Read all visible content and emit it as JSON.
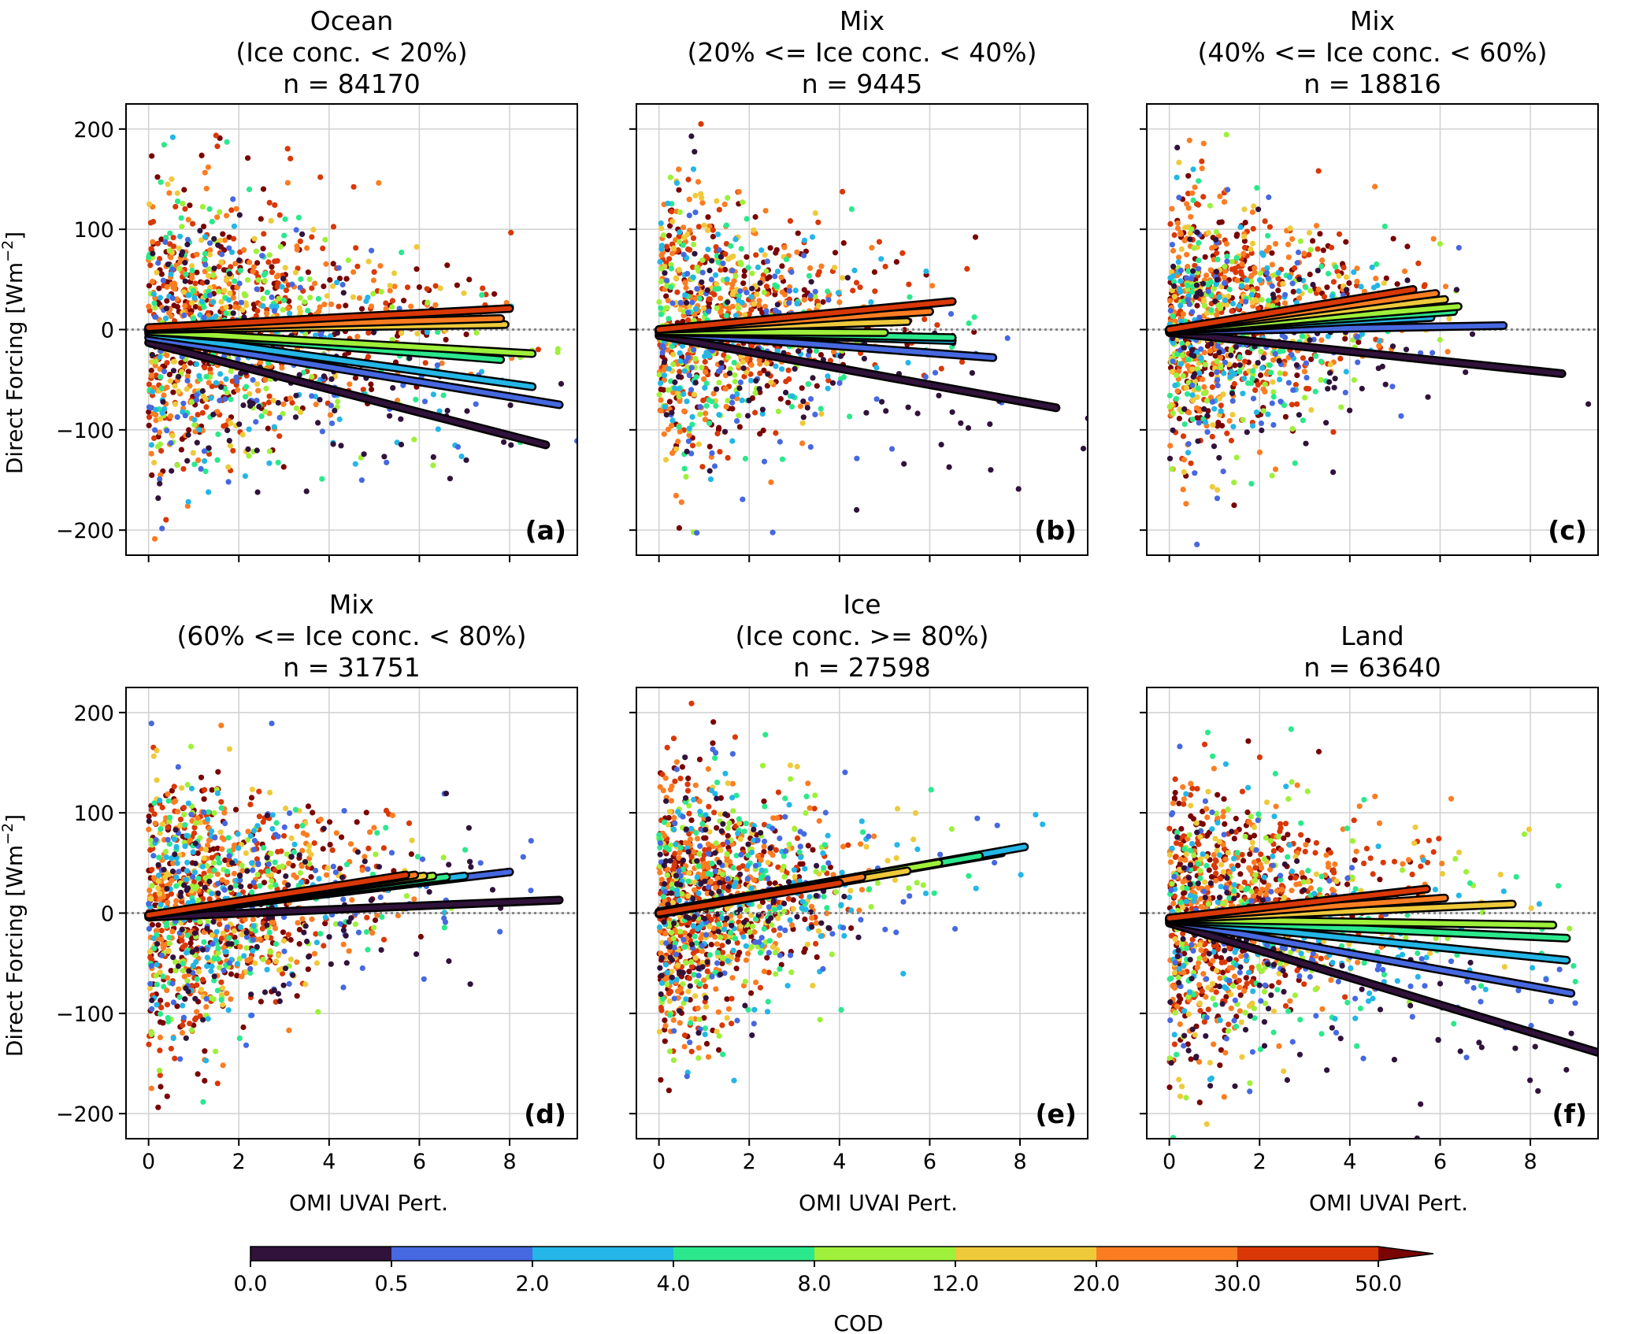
{
  "figure": {
    "xlabel": "OMI UVAI Pert.",
    "ylabel": "Direct Forcing [Wm",
    "ylabel_sup": "−2",
    "ylabel_end": "]"
  },
  "colorbar": {
    "label": "COD",
    "bounds": [
      0.0,
      0.5,
      2.0,
      4.0,
      8.0,
      12.0,
      20.0,
      30.0,
      50.0
    ],
    "tick_labels": [
      "0.0",
      "0.5",
      "2.0",
      "4.0",
      "8.0",
      "12.0",
      "20.0",
      "30.0",
      "50.0"
    ],
    "colors": [
      "#30123b",
      "#4668e0",
      "#23b6e6",
      "#2be88c",
      "#9ef03a",
      "#eeca3b",
      "#fb7d22",
      "#d93806",
      "#7a0403"
    ],
    "extend": "max"
  },
  "chart_data": [
    {
      "type": "scatter",
      "title_lines": [
        "Ocean",
        "(Ice conc. < 20%)",
        "n = 84170"
      ],
      "panel_label": "(a)",
      "n": 84170,
      "xlim": [
        -0.5,
        9.5
      ],
      "ylim": [
        -225,
        225
      ],
      "xticks": [
        0,
        2,
        4,
        6,
        8
      ],
      "yticks": [
        -200,
        -100,
        0,
        100,
        200
      ],
      "yticklabels": [
        "−200",
        "−100",
        "0",
        "100",
        "200"
      ],
      "zero_line": true,
      "fit_lines": [
        {
          "cod_bin": "30.0-50.0",
          "color": "#d93806",
          "x": [
            0,
            8.0
          ],
          "y": [
            2,
            21
          ]
        },
        {
          "cod_bin": "20.0-30.0",
          "color": "#fb7d22",
          "x": [
            0,
            7.8
          ],
          "y": [
            1,
            11
          ]
        },
        {
          "cod_bin": "12.0-20.0",
          "color": "#eeca3b",
          "x": [
            0,
            7.9
          ],
          "y": [
            0,
            5
          ]
        },
        {
          "cod_bin": "8.0-12.0",
          "color": "#9ef03a",
          "x": [
            0,
            8.5
          ],
          "y": [
            -2,
            -24
          ]
        },
        {
          "cod_bin": "4.0-8.0",
          "color": "#2be88c",
          "x": [
            0,
            7.8
          ],
          "y": [
            -2,
            -30
          ]
        },
        {
          "cod_bin": "2.0-4.0",
          "color": "#23b6e6",
          "x": [
            0,
            8.5
          ],
          "y": [
            -4,
            -57
          ]
        },
        {
          "cod_bin": "0.5-2.0",
          "color": "#4668e0",
          "x": [
            0,
            9.1
          ],
          "y": [
            -8,
            -75
          ]
        },
        {
          "cod_bin": "0.0-0.5",
          "color": "#30123b",
          "x": [
            0,
            8.8
          ],
          "y": [
            -13,
            -115
          ]
        }
      ]
    },
    {
      "type": "scatter",
      "title_lines": [
        "Mix",
        "(20% <= Ice conc. < 40%)",
        "n = 9445"
      ],
      "panel_label": "(b)",
      "n": 9445,
      "xlim": [
        -0.5,
        9.5
      ],
      "ylim": [
        -225,
        225
      ],
      "xticks": [
        0,
        2,
        4,
        6,
        8
      ],
      "yticks": [
        -200,
        -100,
        0,
        100,
        200
      ],
      "yticklabels": [
        "−200",
        "−100",
        "0",
        "100",
        "200"
      ],
      "zero_line": true,
      "fit_lines": [
        {
          "cod_bin": "30.0-50.0",
          "color": "#d93806",
          "x": [
            0,
            6.5
          ],
          "y": [
            0,
            28
          ]
        },
        {
          "cod_bin": "20.0-30.0",
          "color": "#fb7d22",
          "x": [
            0,
            6.0
          ],
          "y": [
            0,
            18
          ]
        },
        {
          "cod_bin": "12.0-20.0",
          "color": "#eeca3b",
          "x": [
            0,
            5.5
          ],
          "y": [
            0,
            8
          ]
        },
        {
          "cod_bin": "8.0-12.0",
          "color": "#9ef03a",
          "x": [
            0,
            5.0
          ],
          "y": [
            -2,
            -3
          ]
        },
        {
          "cod_bin": "4.0-8.0",
          "color": "#2be88c",
          "x": [
            0,
            6.5
          ],
          "y": [
            -2,
            -8
          ]
        },
        {
          "cod_bin": "2.0-4.0",
          "color": "#23b6e6",
          "x": [
            0,
            6.5
          ],
          "y": [
            -2,
            -11
          ]
        },
        {
          "cod_bin": "0.5-2.0",
          "color": "#4668e0",
          "x": [
            0,
            7.4
          ],
          "y": [
            -3,
            -28
          ]
        },
        {
          "cod_bin": "0.0-0.5",
          "color": "#30123b",
          "x": [
            0,
            8.8
          ],
          "y": [
            -6,
            -78
          ]
        }
      ]
    },
    {
      "type": "scatter",
      "title_lines": [
        "Mix",
        "(40% <= Ice conc. < 60%)",
        "n = 18816"
      ],
      "panel_label": "(c)",
      "n": 18816,
      "xlim": [
        -0.5,
        9.5
      ],
      "ylim": [
        -225,
        225
      ],
      "xticks": [
        0,
        2,
        4,
        6,
        8
      ],
      "yticks": [
        -200,
        -100,
        0,
        100,
        200
      ],
      "yticklabels": [
        "−200",
        "−100",
        "0",
        "100",
        "200"
      ],
      "zero_line": true,
      "fit_lines": [
        {
          "cod_bin": "30.0-50.0",
          "color": "#d93806",
          "x": [
            0,
            5.4
          ],
          "y": [
            0,
            40
          ]
        },
        {
          "cod_bin": "20.0-30.0",
          "color": "#fb7d22",
          "x": [
            0,
            5.9
          ],
          "y": [
            0,
            36
          ]
        },
        {
          "cod_bin": "12.0-20.0",
          "color": "#eeca3b",
          "x": [
            0,
            6.1
          ],
          "y": [
            0,
            30
          ]
        },
        {
          "cod_bin": "8.0-12.0",
          "color": "#9ef03a",
          "x": [
            0,
            6.4
          ],
          "y": [
            -1,
            23
          ]
        },
        {
          "cod_bin": "4.0-8.0",
          "color": "#2be88c",
          "x": [
            0,
            6.3
          ],
          "y": [
            -1,
            18
          ]
        },
        {
          "cod_bin": "2.0-4.0",
          "color": "#23b6e6",
          "x": [
            0,
            5.8
          ],
          "y": [
            -1,
            12
          ]
        },
        {
          "cod_bin": "0.5-2.0",
          "color": "#4668e0",
          "x": [
            0,
            7.4
          ],
          "y": [
            -2,
            4
          ]
        },
        {
          "cod_bin": "0.0-0.5",
          "color": "#30123b",
          "x": [
            0,
            8.7
          ],
          "y": [
            -3,
            -44
          ]
        }
      ]
    },
    {
      "type": "scatter",
      "title_lines": [
        "Mix",
        "(60% <= Ice conc. < 80%)",
        "n = 31751"
      ],
      "panel_label": "(d)",
      "n": 31751,
      "xlim": [
        -0.5,
        9.5
      ],
      "ylim": [
        -225,
        225
      ],
      "xticks": [
        0,
        2,
        4,
        6,
        8
      ],
      "yticks": [
        -200,
        -100,
        0,
        100,
        200
      ],
      "yticklabels": [
        "−200",
        "−100",
        "0",
        "100",
        "200"
      ],
      "zero_line": true,
      "fit_lines": [
        {
          "cod_bin": "30.0-50.0",
          "color": "#d93806",
          "x": [
            0,
            5.7
          ],
          "y": [
            -2,
            38
          ]
        },
        {
          "cod_bin": "20.0-30.0",
          "color": "#fb7d22",
          "x": [
            0,
            5.9
          ],
          "y": [
            -2,
            38
          ]
        },
        {
          "cod_bin": "12.0-20.0",
          "color": "#eeca3b",
          "x": [
            0,
            6.1
          ],
          "y": [
            -2,
            37
          ]
        },
        {
          "cod_bin": "8.0-12.0",
          "color": "#9ef03a",
          "x": [
            0,
            6.3
          ],
          "y": [
            -2,
            37
          ]
        },
        {
          "cod_bin": "4.0-8.0",
          "color": "#2be88c",
          "x": [
            0,
            6.6
          ],
          "y": [
            -2,
            36
          ]
        },
        {
          "cod_bin": "2.0-4.0",
          "color": "#23b6e6",
          "x": [
            0,
            7.0
          ],
          "y": [
            -2,
            37
          ]
        },
        {
          "cod_bin": "0.5-2.0",
          "color": "#4668e0",
          "x": [
            0,
            8.0
          ],
          "y": [
            -2,
            41
          ]
        },
        {
          "cod_bin": "0.0-0.5",
          "color": "#30123b",
          "x": [
            0,
            9.1
          ],
          "y": [
            -4,
            13
          ]
        }
      ]
    },
    {
      "type": "scatter",
      "title_lines": [
        "Ice",
        "(Ice conc. >= 80%)",
        "n = 27598"
      ],
      "panel_label": "(e)",
      "n": 27598,
      "xlim": [
        -0.5,
        9.5
      ],
      "ylim": [
        -225,
        225
      ],
      "xticks": [
        0,
        2,
        4,
        6,
        8
      ],
      "yticks": [
        -200,
        -100,
        0,
        100,
        200
      ],
      "yticklabels": [
        "−200",
        "−100",
        "0",
        "100",
        "200"
      ],
      "zero_line": true,
      "fit_lines": [
        {
          "cod_bin": "30.0-50.0",
          "color": "#d93806",
          "x": [
            0,
            4.0
          ],
          "y": [
            0,
            30
          ]
        },
        {
          "cod_bin": "20.0-30.0",
          "color": "#fb7d22",
          "x": [
            0,
            4.5
          ],
          "y": [
            0,
            36
          ]
        },
        {
          "cod_bin": "12.0-20.0",
          "color": "#eeca3b",
          "x": [
            0,
            5.5
          ],
          "y": [
            0,
            42
          ]
        },
        {
          "cod_bin": "8.0-12.0",
          "color": "#9ef03a",
          "x": [
            0,
            6.2
          ],
          "y": [
            1,
            50
          ]
        },
        {
          "cod_bin": "4.0-8.0",
          "color": "#2be88c",
          "x": [
            0,
            7.1
          ],
          "y": [
            1,
            57
          ]
        },
        {
          "cod_bin": "2.0-4.0",
          "color": "#23b6e6",
          "x": [
            0,
            8.1
          ],
          "y": [
            1,
            66
          ]
        },
        {
          "cod_bin": "0.5-2.0",
          "color": "#4668e0",
          "x": [
            0,
            7.6
          ],
          "y": [
            1,
            60
          ]
        },
        {
          "cod_bin": "0.0-0.5",
          "color": "#30123b",
          "x": [
            0,
            4.4
          ],
          "y": [
            -1,
            34
          ]
        }
      ]
    },
    {
      "type": "scatter",
      "title_lines": [
        "Land",
        "n = 63640"
      ],
      "panel_label": "(f)",
      "n": 63640,
      "xlim": [
        -0.5,
        9.5
      ],
      "ylim": [
        -225,
        225
      ],
      "xticks": [
        0,
        2,
        4,
        6,
        8
      ],
      "yticks": [
        -200,
        -100,
        0,
        100,
        200
      ],
      "yticklabels": [
        "−200",
        "−100",
        "0",
        "100",
        "200"
      ],
      "zero_line": true,
      "fit_lines": [
        {
          "cod_bin": "30.0-50.0",
          "color": "#d93806",
          "x": [
            0,
            5.7
          ],
          "y": [
            -5,
            24
          ]
        },
        {
          "cod_bin": "20.0-30.0",
          "color": "#fb7d22",
          "x": [
            0,
            6.1
          ],
          "y": [
            -5,
            15
          ]
        },
        {
          "cod_bin": "12.0-20.0",
          "color": "#eeca3b",
          "x": [
            0,
            7.6
          ],
          "y": [
            -6,
            9
          ]
        },
        {
          "cod_bin": "8.0-12.0",
          "color": "#9ef03a",
          "x": [
            0,
            8.5
          ],
          "y": [
            -6,
            -12
          ]
        },
        {
          "cod_bin": "4.0-8.0",
          "color": "#2be88c",
          "x": [
            0,
            8.8
          ],
          "y": [
            -7,
            -25
          ]
        },
        {
          "cod_bin": "2.0-4.0",
          "color": "#23b6e6",
          "x": [
            0,
            8.8
          ],
          "y": [
            -7,
            -47
          ]
        },
        {
          "cod_bin": "0.5-2.0",
          "color": "#4668e0",
          "x": [
            0,
            8.9
          ],
          "y": [
            -8,
            -80
          ]
        },
        {
          "cod_bin": "0.0-0.5",
          "color": "#30123b",
          "x": [
            0,
            9.5
          ],
          "y": [
            -10,
            -139
          ]
        }
      ]
    }
  ]
}
